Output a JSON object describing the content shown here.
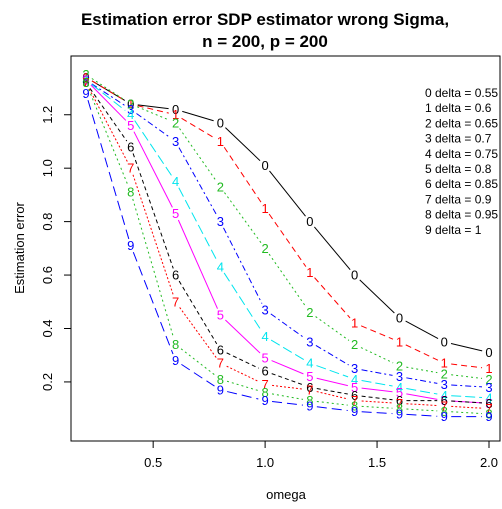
{
  "chart_data": {
    "type": "line",
    "title_line1": "Estimation error SDP estimator wrong Sigma,",
    "title_line2": "n = 200, p = 200",
    "xlabel": "omega",
    "ylabel": "Estimation error",
    "xlim": [
      0.2,
      2.0
    ],
    "ylim": [
      0.05,
      1.36
    ],
    "xticks": [
      0.5,
      1.0,
      1.5,
      2.0
    ],
    "xtick_labels": [
      "0.5",
      "1.0",
      "1.5",
      "2.0"
    ],
    "yticks": [
      0.2,
      0.4,
      0.6,
      0.8,
      1.0,
      1.2
    ],
    "ytick_labels": [
      "0.2",
      "0.4",
      "0.6",
      "0.8",
      "1.0",
      "1.2"
    ],
    "grid": false,
    "legend_position": "top-right",
    "x": [
      0.2,
      0.4,
      0.6,
      0.8,
      1.0,
      1.2,
      1.4,
      1.6,
      1.8,
      2.0
    ],
    "series": [
      {
        "name": "0 delta =  0.55",
        "marker": "0",
        "color": "#000000",
        "dash": "",
        "values": [
          1.34,
          1.24,
          1.22,
          1.17,
          1.01,
          0.8,
          0.6,
          0.44,
          0.35,
          0.31
        ]
      },
      {
        "name": "1 delta =  0.6",
        "marker": "1",
        "color": "#ff0000",
        "dash": "6,4",
        "values": [
          1.34,
          1.24,
          1.2,
          1.1,
          0.85,
          0.61,
          0.42,
          0.35,
          0.27,
          0.25
        ]
      },
      {
        "name": "2 delta =  0.65",
        "marker": "2",
        "color": "#22bb22",
        "dash": "2,3",
        "values": [
          1.35,
          1.24,
          1.17,
          0.93,
          0.7,
          0.46,
          0.34,
          0.26,
          0.23,
          0.21
        ]
      },
      {
        "name": "3 delta =  0.7",
        "marker": "3",
        "color": "#0000ff",
        "dash": "6,3,2,3",
        "values": [
          1.33,
          1.22,
          1.1,
          0.8,
          0.47,
          0.35,
          0.25,
          0.22,
          0.19,
          0.18
        ]
      },
      {
        "name": "4 delta =  0.75",
        "marker": "4",
        "color": "#00e5ee",
        "dash": "10,4",
        "values": [
          1.33,
          1.2,
          0.95,
          0.63,
          0.37,
          0.27,
          0.21,
          0.18,
          0.15,
          0.14
        ]
      },
      {
        "name": "5 delta =  0.8",
        "marker": "5",
        "color": "#ff00ff",
        "dash": "",
        "values": [
          1.33,
          1.16,
          0.83,
          0.45,
          0.29,
          0.22,
          0.18,
          0.16,
          0.13,
          0.12
        ]
      },
      {
        "name": "6 delta =  0.85",
        "marker": "6",
        "color": "#000000",
        "dash": "4,3",
        "values": [
          1.32,
          1.08,
          0.6,
          0.32,
          0.24,
          0.18,
          0.15,
          0.13,
          0.13,
          0.12
        ]
      },
      {
        "name": "7 delta =  0.9",
        "marker": "7",
        "color": "#ff0000",
        "dash": "2,2",
        "values": [
          1.32,
          1.0,
          0.5,
          0.27,
          0.19,
          0.17,
          0.13,
          0.12,
          0.11,
          0.1
        ]
      },
      {
        "name": "8 delta =  0.95",
        "marker": "8",
        "color": "#22bb22",
        "dash": "2,3",
        "values": [
          1.32,
          0.91,
          0.34,
          0.21,
          0.16,
          0.13,
          0.11,
          0.1,
          0.09,
          0.08
        ]
      },
      {
        "name": "9 delta =  1",
        "marker": "9",
        "color": "#0000ff",
        "dash": "10,5",
        "values": [
          1.28,
          0.71,
          0.28,
          0.17,
          0.13,
          0.11,
          0.09,
          0.08,
          0.07,
          0.07
        ]
      }
    ]
  }
}
